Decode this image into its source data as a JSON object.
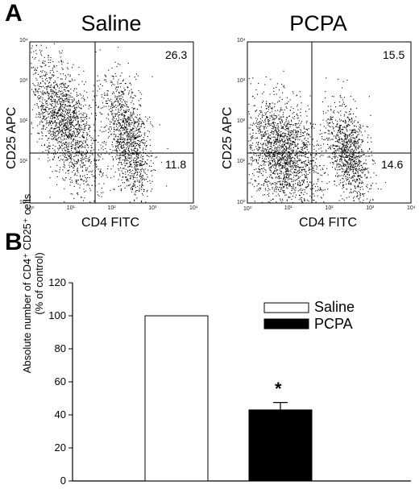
{
  "panels": {
    "a_label": "A",
    "b_label": "B"
  },
  "flow": [
    {
      "title": "Saline",
      "upper_right": "26.3",
      "lower_right": "11.8",
      "xlabel": "CD4 FITC",
      "ylabel": "CD25  APC"
    },
    {
      "title": "PCPA",
      "upper_right": "15.5",
      "lower_right": "14.6",
      "xlabel": "CD4 FITC",
      "ylabel": "CD25  APC"
    }
  ],
  "log_ticks": [
    "10⁰",
    "10¹",
    "10²",
    "10³",
    "10⁴"
  ],
  "chart_data": {
    "type": "bar",
    "categories": [
      "Saline",
      "PCPA"
    ],
    "values": [
      100,
      43
    ],
    "errors": [
      0,
      4.5
    ],
    "significance": [
      "",
      "*"
    ],
    "ylabel_line1": "Absolute number of CD4⁺ CD25⁺ cells",
    "ylabel_line2": "(% of control)",
    "ylim": [
      0,
      120
    ],
    "yticks": [
      0,
      20,
      40,
      60,
      80,
      100,
      120
    ],
    "legend": [
      {
        "name": "Saline",
        "fill": "#ffffff"
      },
      {
        "name": "PCPA",
        "fill": "#000000"
      }
    ],
    "legend_position": "top-right"
  }
}
